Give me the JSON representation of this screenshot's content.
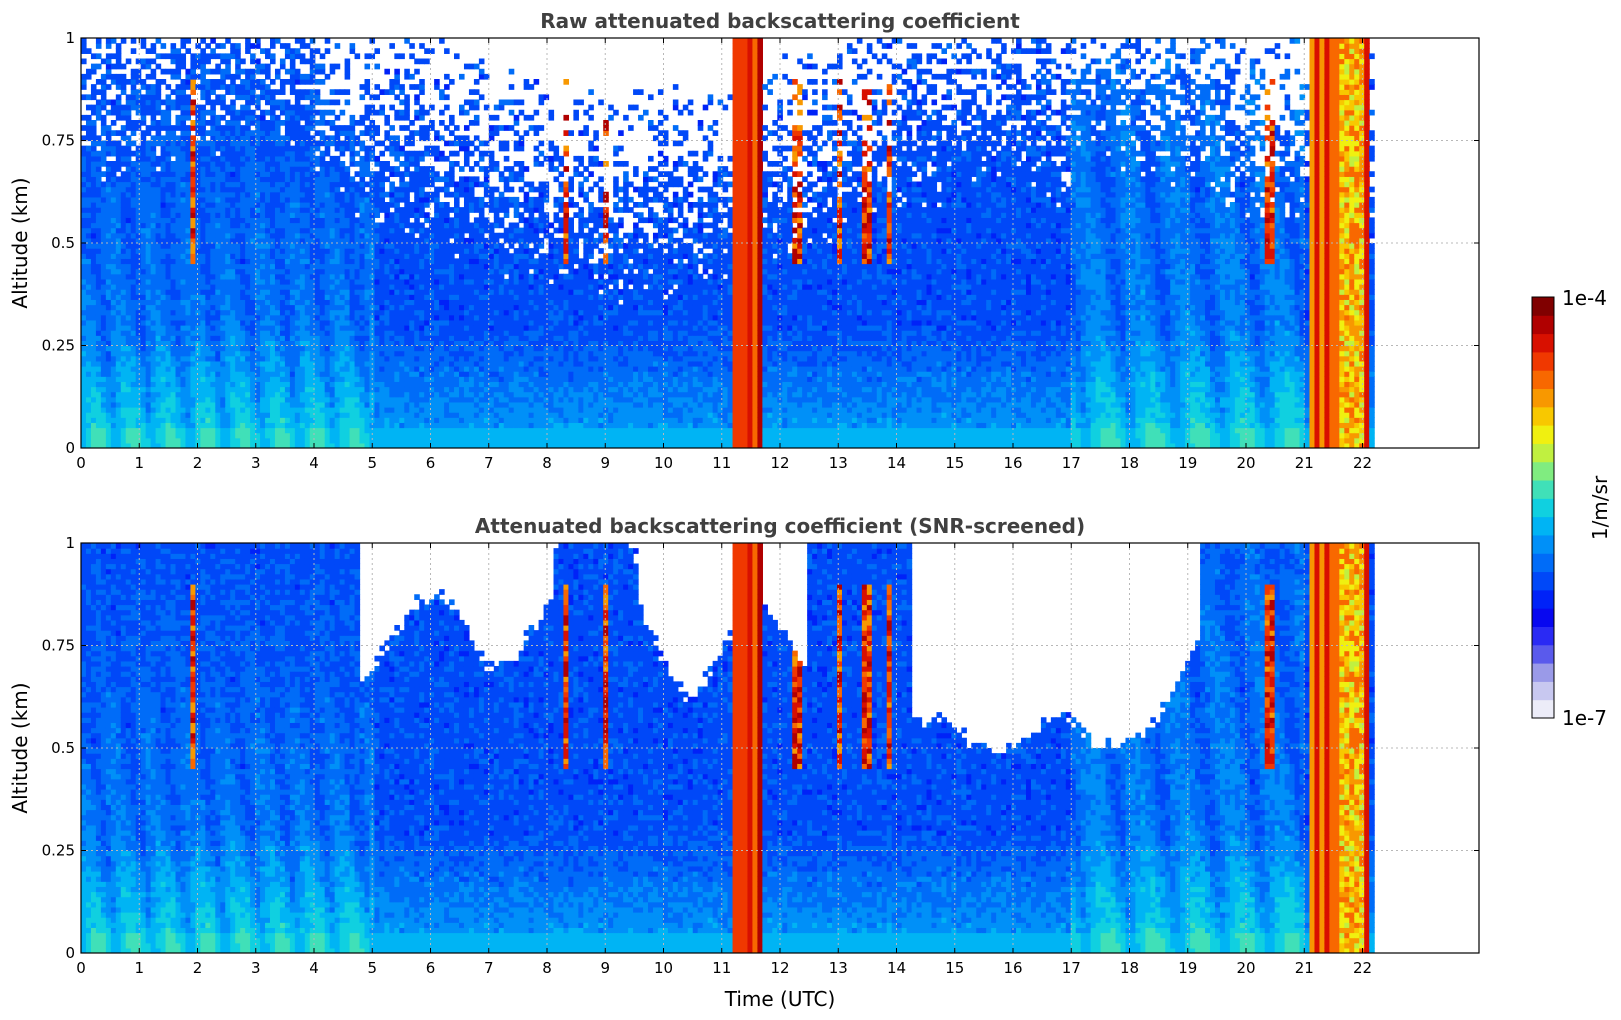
{
  "chart_data": [
    {
      "type": "heatmap",
      "title": "Raw attenuated backscattering coefficient",
      "xlabel": "",
      "ylabel": "Altitude (km)",
      "xlim": [
        0,
        24
      ],
      "ylim": [
        0,
        1
      ],
      "xticks": [
        "0",
        "1",
        "2",
        "3",
        "4",
        "5",
        "6",
        "7",
        "8",
        "9",
        "10",
        "11",
        "12",
        "13",
        "14",
        "15",
        "16",
        "17",
        "18",
        "19",
        "20",
        "21",
        "22"
      ],
      "yticks": [
        "0",
        "0.25",
        "0.5",
        "0.75",
        "1"
      ],
      "grid": true,
      "data_end_hour": 22.2,
      "screened": false
    },
    {
      "type": "heatmap",
      "title": "Attenuated backscattering coefficient (SNR-screened)",
      "xlabel": "Time (UTC)",
      "ylabel": "Altitude (km)",
      "xlim": [
        0,
        24
      ],
      "ylim": [
        0,
        1
      ],
      "xticks": [
        "0",
        "1",
        "2",
        "3",
        "4",
        "5",
        "6",
        "7",
        "8",
        "9",
        "10",
        "11",
        "12",
        "13",
        "14",
        "15",
        "16",
        "17",
        "18",
        "19",
        "20",
        "21",
        "22"
      ],
      "yticks": [
        "0",
        "0.25",
        "0.5",
        "0.75",
        "1"
      ],
      "grid": true,
      "data_end_hour": 22.2,
      "screened": true
    }
  ],
  "colorbar": {
    "label": "1/m/sr",
    "max_label": "1e-4",
    "min_label": "1e-7",
    "scale": "log",
    "colors": [
      "#ececf8",
      "#c8c8f0",
      "#9a9ae8",
      "#5a5aec",
      "#2a2af4",
      "#0808f0",
      "#0022f8",
      "#0048f8",
      "#006cf8",
      "#0090f8",
      "#00b4f4",
      "#10d0e0",
      "#40e0b8",
      "#80ec80",
      "#c0f040",
      "#f0f010",
      "#f8c800",
      "#f89800",
      "#f86800",
      "#f03800",
      "#d81000",
      "#b00000",
      "#800000"
    ]
  }
}
